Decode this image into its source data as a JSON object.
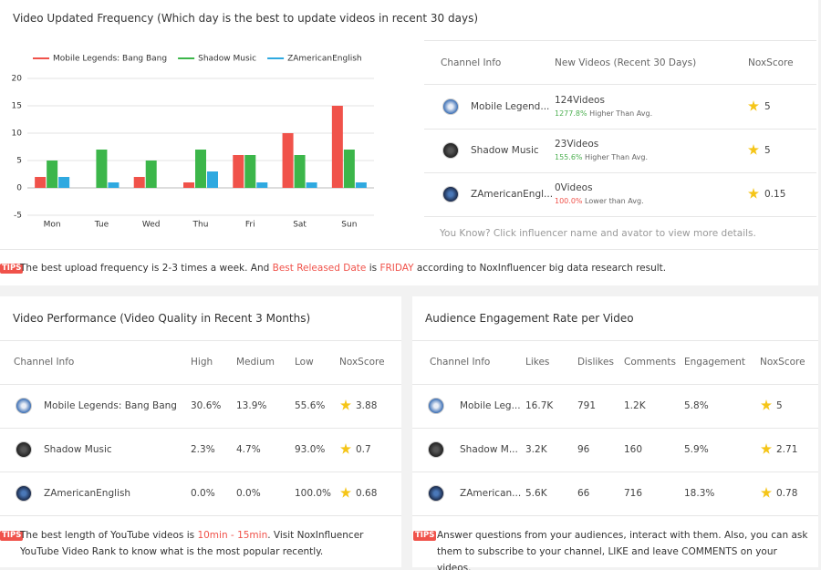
{
  "frequency": {
    "title": "Video Updated Frequency (Which day is the best to update videos in recent 30 days)",
    "chart_data": {
      "type": "bar",
      "categories": [
        "Mon",
        "Tue",
        "Wed",
        "Thu",
        "Fri",
        "Sat",
        "Sun"
      ],
      "series": [
        {
          "name": "Mobile Legends: Bang Bang",
          "color": "#f0524a",
          "values": [
            2,
            0,
            2,
            1,
            6,
            10,
            15
          ]
        },
        {
          "name": "Shadow Music",
          "color": "#3cb64a",
          "values": [
            5,
            7,
            5,
            7,
            6,
            6,
            7
          ]
        },
        {
          "name": "ZAmericanEnglish",
          "color": "#2fa9e0",
          "values": [
            2,
            1,
            0,
            3,
            1,
            1,
            1
          ]
        }
      ],
      "ylim": [
        -5,
        20
      ],
      "yticks": [
        -5,
        0,
        5,
        10,
        15,
        20
      ],
      "grid": true,
      "legend": "top"
    },
    "table": {
      "headers": [
        "Channel Info",
        "New Videos (Recent 30 Days)",
        "NoxScore"
      ],
      "rows": [
        {
          "name": "Mobile Legend...",
          "videos": "124Videos",
          "pct": "1277.8%",
          "pct_color": "#4caf50",
          "comparison": " Higher Than Avg.",
          "score": "5"
        },
        {
          "name": "Shadow Music",
          "videos": "23Videos",
          "pct": "155.6%",
          "pct_color": "#4caf50",
          "comparison": " Higher Than Avg.",
          "score": "5"
        },
        {
          "name": "ZAmericanEngl...",
          "videos": "0Videos",
          "pct": "100.0%",
          "pct_color": "#f0524a",
          "comparison": " Lower than Avg.",
          "score": "0.15"
        }
      ],
      "footer": "You Know? Click influencer name and avator to view more details."
    },
    "tip": {
      "badge": "TIPS",
      "segments": [
        {
          "text": "The best upload frequency is 2-3 times a week. And "
        },
        {
          "text": "Best Released Date",
          "highlight": true
        },
        {
          "text": " is "
        },
        {
          "text": "FRIDAY",
          "highlight": true
        },
        {
          "text": " according to NoxInfluencer big data research result."
        }
      ]
    }
  },
  "performance": {
    "title": "Video Performance (Video Quality in Recent 3 Months)",
    "headers": [
      "Channel Info",
      "High",
      "Medium",
      "Low",
      "NoxScore"
    ],
    "rows": [
      [
        "Mobile Legends: Bang Bang",
        "30.6%",
        "13.9%",
        "55.6%",
        "3.88"
      ],
      [
        "Shadow Music",
        "2.3%",
        "4.7%",
        "93.0%",
        "0.7"
      ],
      [
        "ZAmericanEnglish",
        "0.0%",
        "0.0%",
        "100.0%",
        "0.68"
      ]
    ],
    "tip": {
      "badge": "TIPS",
      "segments": [
        {
          "text": "The best length of YouTube videos is "
        },
        {
          "text": "10min - 15min",
          "highlight": true
        },
        {
          "text": ". Visit NoxInfluencer YouTube Video Rank to know what is the most popular recently."
        }
      ]
    }
  },
  "engagement": {
    "title": "Audience Engagement Rate per Video",
    "headers": [
      "Channel Info",
      "Likes",
      "Dislikes",
      "Comments",
      "Engagement",
      "NoxScore"
    ],
    "rows": [
      [
        "Mobile Leg...",
        "16.7K",
        "791",
        "1.2K",
        "5.8%",
        "5"
      ],
      [
        "Shadow M...",
        "3.2K",
        "96",
        "160",
        "5.9%",
        "2.71"
      ],
      [
        "ZAmerican...",
        "5.6K",
        "66",
        "716",
        "18.3%",
        "0.78"
      ]
    ],
    "tip": {
      "badge": "TIPS",
      "segments": [
        {
          "text": "Answer questions from your audiences, interact with them. Also, you can ask them to subscribe to your channel, LIKE and leave COMMENTS on your videos."
        }
      ]
    }
  }
}
